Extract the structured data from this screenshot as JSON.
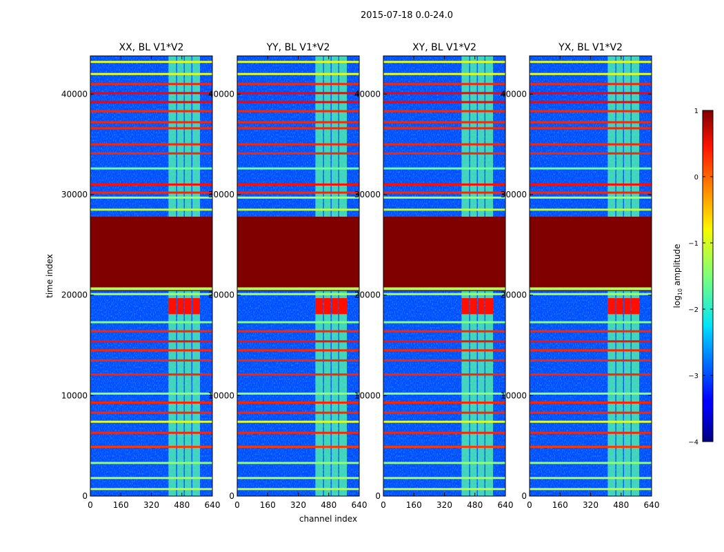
{
  "figure": {
    "suptitle": "2015-07-18 0.0-24.0",
    "xlabel": "channel index",
    "ylabel": "time index",
    "colorbar_label_main": "log",
    "colorbar_label_sub": "10",
    "colorbar_label_tail": " amplitude"
  },
  "chart_data": {
    "type": "heatmap",
    "panels": [
      {
        "title": "XX, BL V1*V2",
        "polarization": "XX"
      },
      {
        "title": "YY, BL V1*V2",
        "polarization": "YY"
      },
      {
        "title": "XY, BL V1*V2",
        "polarization": "XY"
      },
      {
        "title": "YX, BL V1*V2",
        "polarization": "YX"
      }
    ],
    "xlim": [
      0,
      640
    ],
    "ylim": [
      0,
      43800
    ],
    "x_ticks": [
      0,
      160,
      320,
      480,
      640
    ],
    "x_tick_labels": [
      "0",
      "160",
      "320",
      "480",
      "640"
    ],
    "y_ticks": [
      0,
      10000,
      20000,
      30000,
      40000
    ],
    "y_tick_labels": [
      "0",
      "10000",
      "20000",
      "30000",
      "40000"
    ],
    "colorbar": {
      "vmin": -4,
      "vmax": 1,
      "colormap": "jet",
      "ticks": [
        -4,
        -3,
        -2,
        -1,
        0,
        1
      ],
      "tick_labels": [
        "−4",
        "−3",
        "−2",
        "−1",
        "0",
        "1"
      ]
    },
    "background_level": -3,
    "saturated_block": {
      "t_start": 20400,
      "t_end": 27800,
      "level": 1.0
    },
    "rfi_channel_ranges": [
      [
        410,
        450
      ],
      [
        455,
        490
      ],
      [
        495,
        530
      ],
      [
        535,
        575
      ]
    ],
    "rfi_level": -1.7,
    "strong_rfi": {
      "t_start": 18100,
      "t_end": 19700,
      "level": 0.3
    },
    "bright_rows": [
      {
        "t": 700,
        "level": -1.2
      },
      {
        "t": 1800,
        "level": -1.3
      },
      {
        "t": 3300,
        "level": -1.4
      },
      {
        "t": 4900,
        "level": 0.1
      },
      {
        "t": 6300,
        "level": 0.2
      },
      {
        "t": 7400,
        "level": -1.0
      },
      {
        "t": 8300,
        "level": 0.2
      },
      {
        "t": 9300,
        "level": 0.2
      },
      {
        "t": 10200,
        "level": -1.4
      },
      {
        "t": 12100,
        "level": 0.2
      },
      {
        "t": 13500,
        "level": 0.2
      },
      {
        "t": 14500,
        "level": 0.2
      },
      {
        "t": 15400,
        "level": 0.3
      },
      {
        "t": 16400,
        "level": 0.2
      },
      {
        "t": 17300,
        "level": -1.5
      },
      {
        "t": 20100,
        "level": -1.3
      },
      {
        "t": 28500,
        "level": -1.2
      },
      {
        "t": 29700,
        "level": -1.3
      },
      {
        "t": 30200,
        "level": 0.2
      },
      {
        "t": 31000,
        "level": 0.3
      },
      {
        "t": 32600,
        "level": -1.6
      },
      {
        "t": 34100,
        "level": 0.2
      },
      {
        "t": 35000,
        "level": 0.2
      },
      {
        "t": 36600,
        "level": 0.2
      },
      {
        "t": 37200,
        "level": 0.2
      },
      {
        "t": 38300,
        "level": 0.2
      },
      {
        "t": 39200,
        "level": 0.4
      },
      {
        "t": 40100,
        "level": 0.4
      },
      {
        "t": 41000,
        "level": 0.2
      },
      {
        "t": 42000,
        "level": -1.0
      },
      {
        "t": 43200,
        "level": -1.0
      }
    ]
  }
}
